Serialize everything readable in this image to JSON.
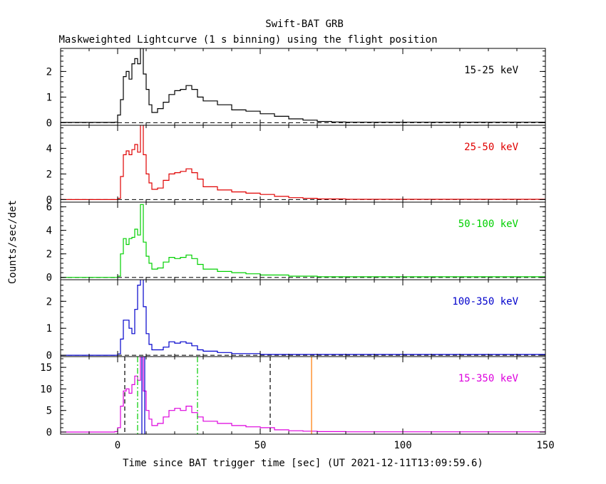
{
  "title": "Swift-BAT GRB",
  "subtitle": "Maskweighted Lightcurve (1 s binning) using the flight position",
  "xlabel": "Time since BAT trigger time [sec] (UT 2021-12-11T13:09:59.6)",
  "ylabel": "Counts/sec/det",
  "chart_data": [
    {
      "type": "line",
      "band": "15-25 keV",
      "color": "#000000",
      "xlim": [
        -20,
        150
      ],
      "ylim": [
        -0.1,
        2.9
      ],
      "yticks": [
        0,
        1,
        2
      ],
      "xticks": [
        0,
        50,
        100,
        150
      ],
      "dashed_zero": true,
      "points": [
        [
          -20,
          0.01
        ],
        [
          -1,
          0.02
        ],
        [
          0,
          0.3
        ],
        [
          1,
          0.9
        ],
        [
          2,
          1.8
        ],
        [
          3,
          2.0
        ],
        [
          4,
          1.7
        ],
        [
          5,
          2.3
        ],
        [
          6,
          2.5
        ],
        [
          7,
          2.3
        ],
        [
          8,
          2.9
        ],
        [
          9,
          1.9
        ],
        [
          10,
          1.3
        ],
        [
          11,
          0.7
        ],
        [
          12,
          0.4
        ],
        [
          14,
          0.55
        ],
        [
          16,
          0.8
        ],
        [
          18,
          1.1
        ],
        [
          20,
          1.25
        ],
        [
          22,
          1.3
        ],
        [
          24,
          1.45
        ],
        [
          26,
          1.3
        ],
        [
          28,
          1.0
        ],
        [
          30,
          0.85
        ],
        [
          35,
          0.7
        ],
        [
          40,
          0.5
        ],
        [
          45,
          0.45
        ],
        [
          50,
          0.35
        ],
        [
          55,
          0.25
        ],
        [
          60,
          0.15
        ],
        [
          65,
          0.1
        ],
        [
          70,
          0.05
        ],
        [
          75,
          0.03
        ],
        [
          80,
          0.02
        ],
        [
          150,
          0.0
        ]
      ]
    },
    {
      "type": "line",
      "band": "25-50 keV",
      "color": "#e00000",
      "xlim": [
        -20,
        150
      ],
      "ylim": [
        -0.2,
        5.8
      ],
      "yticks": [
        0,
        2,
        4
      ],
      "xticks": [
        0,
        50,
        100,
        150
      ],
      "dashed_zero": true,
      "points": [
        [
          -20,
          0.0
        ],
        [
          0,
          0.1
        ],
        [
          1,
          1.8
        ],
        [
          2,
          3.5
        ],
        [
          3,
          3.8
        ],
        [
          4,
          3.5
        ],
        [
          5,
          3.9
        ],
        [
          6,
          4.3
        ],
        [
          7,
          3.7
        ],
        [
          8,
          6.0
        ],
        [
          9,
          3.5
        ],
        [
          10,
          2.0
        ],
        [
          11,
          1.3
        ],
        [
          12,
          0.8
        ],
        [
          14,
          0.9
        ],
        [
          16,
          1.5
        ],
        [
          18,
          2.0
        ],
        [
          20,
          2.1
        ],
        [
          22,
          2.2
        ],
        [
          24,
          2.4
        ],
        [
          26,
          2.1
        ],
        [
          28,
          1.6
        ],
        [
          30,
          1.0
        ],
        [
          35,
          0.75
        ],
        [
          40,
          0.6
        ],
        [
          45,
          0.5
        ],
        [
          50,
          0.4
        ],
        [
          55,
          0.25
        ],
        [
          60,
          0.15
        ],
        [
          65,
          0.1
        ],
        [
          70,
          0.05
        ],
        [
          80,
          0.02
        ],
        [
          150,
          0.0
        ]
      ]
    },
    {
      "type": "line",
      "band": "50-100 keV",
      "color": "#00d000",
      "xlim": [
        -20,
        150
      ],
      "ylim": [
        -0.2,
        6.4
      ],
      "yticks": [
        0,
        2,
        4,
        6
      ],
      "xticks": [
        0,
        50,
        100,
        150
      ],
      "dashed_zero": true,
      "points": [
        [
          -20,
          0.0
        ],
        [
          0,
          0.1
        ],
        [
          1,
          2.0
        ],
        [
          2,
          3.3
        ],
        [
          3,
          2.8
        ],
        [
          4,
          3.3
        ],
        [
          5,
          3.4
        ],
        [
          6,
          4.1
        ],
        [
          7,
          3.6
        ],
        [
          8,
          6.2
        ],
        [
          9,
          3.0
        ],
        [
          10,
          1.8
        ],
        [
          11,
          1.2
        ],
        [
          12,
          0.7
        ],
        [
          14,
          0.8
        ],
        [
          16,
          1.3
        ],
        [
          18,
          1.7
        ],
        [
          20,
          1.6
        ],
        [
          22,
          1.7
        ],
        [
          24,
          1.9
        ],
        [
          26,
          1.6
        ],
        [
          28,
          1.1
        ],
        [
          30,
          0.7
        ],
        [
          35,
          0.5
        ],
        [
          40,
          0.4
        ],
        [
          45,
          0.3
        ],
        [
          50,
          0.2
        ],
        [
          60,
          0.1
        ],
        [
          70,
          0.05
        ],
        [
          150,
          0.0
        ]
      ]
    },
    {
      "type": "line",
      "band": "100-350 keV",
      "color": "#0000cc",
      "xlim": [
        -20,
        150
      ],
      "ylim": [
        -0.05,
        2.8
      ],
      "yticks": [
        0,
        1,
        2
      ],
      "xticks": [
        0,
        50,
        100,
        150
      ],
      "dashed_zero": true,
      "points": [
        [
          -20,
          0.0
        ],
        [
          0,
          0.05
        ],
        [
          1,
          0.6
        ],
        [
          2,
          1.3
        ],
        [
          3,
          1.3
        ],
        [
          4,
          1.0
        ],
        [
          5,
          0.8
        ],
        [
          6,
          1.7
        ],
        [
          7,
          2.6
        ],
        [
          8,
          3.0
        ],
        [
          9,
          1.8
        ],
        [
          10,
          0.8
        ],
        [
          11,
          0.4
        ],
        [
          12,
          0.2
        ],
        [
          14,
          0.2
        ],
        [
          16,
          0.3
        ],
        [
          18,
          0.5
        ],
        [
          20,
          0.45
        ],
        [
          22,
          0.5
        ],
        [
          24,
          0.45
        ],
        [
          26,
          0.35
        ],
        [
          28,
          0.2
        ],
        [
          30,
          0.15
        ],
        [
          35,
          0.1
        ],
        [
          40,
          0.06
        ],
        [
          50,
          0.03
        ],
        [
          150,
          0.0
        ]
      ]
    },
    {
      "type": "line",
      "band": "15-350 keV",
      "color": "#dd00dd",
      "xlim": [
        -20,
        150
      ],
      "ylim": [
        -0.5,
        17.5
      ],
      "yticks": [
        0,
        5,
        10,
        15
      ],
      "xticks": [
        0,
        50,
        100,
        150
      ],
      "dashed_zero": false,
      "points": [
        [
          -20,
          0.0
        ],
        [
          -1,
          0.1
        ],
        [
          0,
          1.0
        ],
        [
          1,
          6.0
        ],
        [
          2,
          9.5
        ],
        [
          3,
          10.0
        ],
        [
          4,
          9.0
        ],
        [
          5,
          11.0
        ],
        [
          6,
          13.0
        ],
        [
          7,
          12.0
        ],
        [
          8,
          17.5
        ],
        [
          9,
          9.5
        ],
        [
          10,
          5.0
        ],
        [
          11,
          3.0
        ],
        [
          12,
          1.5
        ],
        [
          14,
          2.0
        ],
        [
          16,
          3.5
        ],
        [
          18,
          5.0
        ],
        [
          20,
          5.5
        ],
        [
          22,
          5.0
        ],
        [
          24,
          6.0
        ],
        [
          26,
          4.5
        ],
        [
          28,
          3.5
        ],
        [
          30,
          2.5
        ],
        [
          35,
          2.0
        ],
        [
          40,
          1.5
        ],
        [
          45,
          1.2
        ],
        [
          50,
          1.0
        ],
        [
          55,
          0.5
        ],
        [
          60,
          0.3
        ],
        [
          65,
          0.2
        ],
        [
          70,
          0.1
        ],
        [
          80,
          0.05
        ],
        [
          150,
          0.0
        ]
      ],
      "markers": [
        {
          "x": 2.5,
          "color": "#000000",
          "style": "dashed"
        },
        {
          "x": 53.5,
          "color": "#000000",
          "style": "dashed"
        },
        {
          "x": 7.0,
          "color": "#00cc00",
          "style": "dashdot"
        },
        {
          "x": 28.0,
          "color": "#00cc00",
          "style": "dashdot"
        },
        {
          "x": 8.5,
          "color": "#0000cc",
          "style": "solid"
        },
        {
          "x": 9.5,
          "color": "#0000cc",
          "style": "solid"
        },
        {
          "x": 68.0,
          "color": "#ff7700",
          "style": "solid"
        }
      ]
    }
  ]
}
